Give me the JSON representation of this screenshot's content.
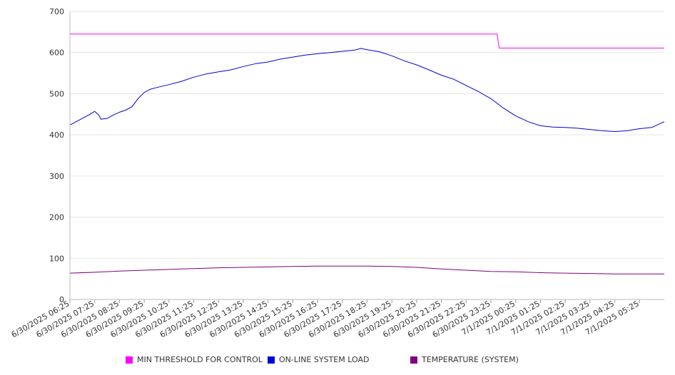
{
  "chart_data": {
    "type": "line",
    "title": "",
    "xlabel": "",
    "ylabel": "",
    "ylim": [
      0,
      700
    ],
    "yticks": [
      0,
      100,
      200,
      300,
      400,
      500,
      600,
      700
    ],
    "grid": true,
    "legend_position": "bottom",
    "x_tick_labels": [
      "6/30/2025 06:25",
      "6/30/2025 07:25",
      "6/30/2025 08:25",
      "6/30/2025 09:25",
      "6/30/2025 10:25",
      "6/30/2025 11:25",
      "6/30/2025 12:25",
      "6/30/2025 13:25",
      "6/30/2025 14:25",
      "6/30/2025 15:25",
      "6/30/2025 16:25",
      "6/30/2025 17:25",
      "6/30/2025 18:25",
      "6/30/2025 19:25",
      "6/30/2025 20:25",
      "6/30/2025 21:25",
      "6/30/2025 22:25",
      "6/30/2025 23:25",
      "7/1/2025 00:25",
      "7/1/2025 01:25",
      "7/1/2025 02:25",
      "7/1/2025 03:25",
      "7/1/2025 04:25",
      "7/1/2025 05:25"
    ],
    "x_range": [
      "6/30/2025 06:25",
      "7/1/2025 06:25"
    ],
    "series": [
      {
        "name": "MIN THRESHOLD FOR CONTROL",
        "color": "#ff00ff",
        "points": [
          [
            "6/30/2025 06:25",
            645
          ],
          [
            "6/30/2025 23:40",
            645
          ],
          [
            "6/30/2025 23:45",
            611
          ],
          [
            "7/1/2025 06:25",
            611
          ]
        ]
      },
      {
        "name": "ON-LINE SYSTEM LOAD",
        "color": "#0000dd",
        "points": [
          [
            "6/30/2025 06:25",
            424
          ],
          [
            "6/30/2025 06:40",
            432
          ],
          [
            "6/30/2025 06:55",
            440
          ],
          [
            "6/30/2025 07:10",
            448
          ],
          [
            "6/30/2025 07:25",
            457
          ],
          [
            "6/30/2025 07:35",
            448
          ],
          [
            "6/30/2025 07:40",
            438
          ],
          [
            "6/30/2025 07:55",
            440
          ],
          [
            "6/30/2025 08:10",
            448
          ],
          [
            "6/30/2025 08:25",
            455
          ],
          [
            "6/30/2025 08:40",
            460
          ],
          [
            "6/30/2025 08:55",
            468
          ],
          [
            "6/30/2025 09:10",
            488
          ],
          [
            "6/30/2025 09:25",
            503
          ],
          [
            "6/30/2025 09:40",
            511
          ],
          [
            "6/30/2025 09:55",
            515
          ],
          [
            "6/30/2025 10:25",
            522
          ],
          [
            "6/30/2025 10:55",
            530
          ],
          [
            "6/30/2025 11:25",
            540
          ],
          [
            "6/30/2025 11:55",
            548
          ],
          [
            "6/30/2025 12:25",
            553
          ],
          [
            "6/30/2025 12:55",
            558
          ],
          [
            "6/30/2025 13:25",
            566
          ],
          [
            "6/30/2025 13:55",
            573
          ],
          [
            "6/30/2025 14:25",
            577
          ],
          [
            "6/30/2025 14:55",
            584
          ],
          [
            "6/30/2025 15:25",
            589
          ],
          [
            "6/30/2025 15:55",
            594
          ],
          [
            "6/30/2025 16:25",
            597
          ],
          [
            "6/30/2025 16:55",
            600
          ],
          [
            "6/30/2025 17:25",
            603
          ],
          [
            "6/30/2025 17:55",
            606
          ],
          [
            "6/30/2025 18:10",
            610
          ],
          [
            "6/30/2025 18:25",
            607
          ],
          [
            "6/30/2025 18:55",
            602
          ],
          [
            "6/30/2025 19:25",
            592
          ],
          [
            "6/30/2025 19:55",
            580
          ],
          [
            "6/30/2025 20:25",
            570
          ],
          [
            "6/30/2025 20:55",
            558
          ],
          [
            "6/30/2025 21:25",
            545
          ],
          [
            "6/30/2025 21:55",
            535
          ],
          [
            "6/30/2025 22:25",
            520
          ],
          [
            "6/30/2025 22:55",
            505
          ],
          [
            "6/30/2025 23:25",
            488
          ],
          [
            "6/30/2025 23:55",
            465
          ],
          [
            "7/1/2025 00:25",
            446
          ],
          [
            "7/1/2025 00:55",
            432
          ],
          [
            "7/1/2025 01:25",
            422
          ],
          [
            "7/1/2025 01:55",
            419
          ],
          [
            "7/1/2025 02:25",
            418
          ],
          [
            "7/1/2025 02:55",
            416
          ],
          [
            "7/1/2025 03:25",
            413
          ],
          [
            "7/1/2025 03:55",
            410
          ],
          [
            "7/1/2025 04:25",
            408
          ],
          [
            "7/1/2025 04:55",
            410
          ],
          [
            "7/1/2025 05:25",
            415
          ],
          [
            "7/1/2025 05:55",
            418
          ],
          [
            "7/1/2025 06:25",
            432
          ]
        ]
      },
      {
        "name": "TEMPERATURE (SYSTEM)",
        "color": "#800080",
        "points": [
          [
            "6/30/2025 06:25",
            64
          ],
          [
            "6/30/2025 07:25",
            66
          ],
          [
            "6/30/2025 08:25",
            69
          ],
          [
            "6/30/2025 09:25",
            71
          ],
          [
            "6/30/2025 10:25",
            73
          ],
          [
            "6/30/2025 11:25",
            75
          ],
          [
            "6/30/2025 12:25",
            77
          ],
          [
            "6/30/2025 13:25",
            78
          ],
          [
            "6/30/2025 14:25",
            79
          ],
          [
            "6/30/2025 15:25",
            80
          ],
          [
            "6/30/2025 16:25",
            81
          ],
          [
            "6/30/2025 17:25",
            81
          ],
          [
            "6/30/2025 18:25",
            81
          ],
          [
            "6/30/2025 19:25",
            80
          ],
          [
            "6/30/2025 20:25",
            78
          ],
          [
            "6/30/2025 21:25",
            74
          ],
          [
            "6/30/2025 22:25",
            71
          ],
          [
            "6/30/2025 23:25",
            68
          ],
          [
            "7/1/2025 00:25",
            67
          ],
          [
            "7/1/2025 01:25",
            65
          ],
          [
            "7/1/2025 02:25",
            64
          ],
          [
            "7/1/2025 03:25",
            63
          ],
          [
            "7/1/2025 04:25",
            62
          ],
          [
            "7/1/2025 05:25",
            62
          ],
          [
            "7/1/2025 06:25",
            62
          ]
        ]
      }
    ]
  }
}
